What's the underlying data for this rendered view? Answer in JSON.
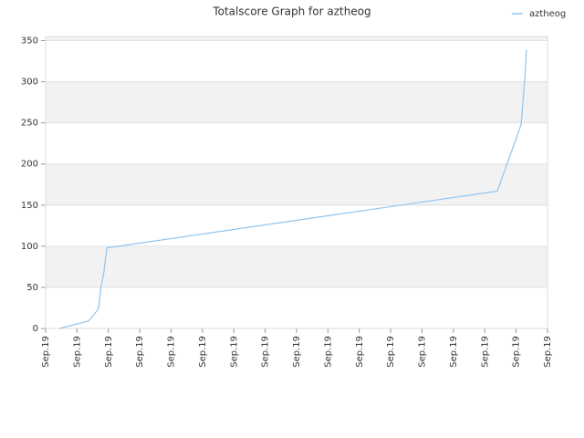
{
  "chart_data": {
    "type": "line",
    "title": "Totalscore Graph for aztheog",
    "x": [
      0.44,
      1.37,
      1.69,
      1.75,
      1.86,
      1.95,
      14.4,
      15.16,
      15.27,
      15.33
    ],
    "series": [
      {
        "name": "aztheog",
        "color": "#90c4ee",
        "values": [
          0,
          9,
          24,
          47,
          69,
          98,
          167,
          248,
          300,
          339
        ]
      }
    ],
    "xlim": [
      0,
      16
    ],
    "xticks": [
      {
        "value": 0,
        "label": "Sep.19"
      },
      {
        "value": 1,
        "label": "Sep.19"
      },
      {
        "value": 2,
        "label": "Sep.19"
      },
      {
        "value": 3,
        "label": "Sep.19"
      },
      {
        "value": 4,
        "label": "Sep.19"
      },
      {
        "value": 5,
        "label": "Sep.19"
      },
      {
        "value": 6,
        "label": "Sep.19"
      },
      {
        "value": 7,
        "label": "Sep.19"
      },
      {
        "value": 8,
        "label": "Sep.19"
      },
      {
        "value": 9,
        "label": "Sep.19"
      },
      {
        "value": 10,
        "label": "Sep.19"
      },
      {
        "value": 11,
        "label": "Sep.19"
      },
      {
        "value": 12,
        "label": "Sep.19"
      },
      {
        "value": 13,
        "label": "Sep.19"
      },
      {
        "value": 14,
        "label": "Sep.19"
      },
      {
        "value": 15,
        "label": "Sep.19"
      },
      {
        "value": 16,
        "label": "Sep.19"
      }
    ],
    "ylim": [
      0,
      355
    ],
    "yticks": [
      0,
      50,
      100,
      150,
      200,
      250,
      300,
      350
    ],
    "grid": true,
    "legend": "top-right"
  }
}
